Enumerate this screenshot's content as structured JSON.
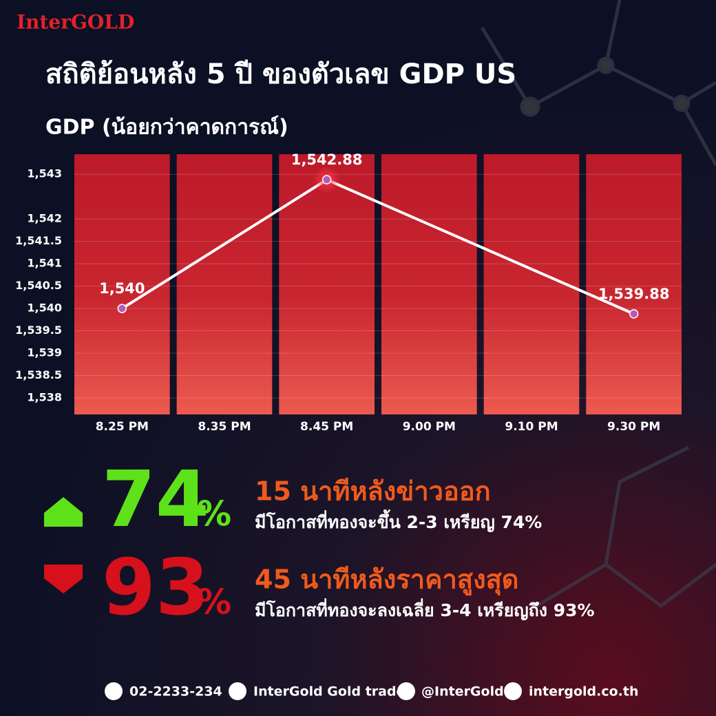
{
  "brand": "InterGOLD",
  "title": "สถิติย้อนหลัง 5 ปี ของตัวเลข GDP US",
  "chart_data": {
    "type": "line",
    "title": "GDP (น้อยกว่าคาดการณ์)",
    "categories": [
      "8.25 PM",
      "8.35 PM",
      "8.45 PM",
      "9.00 PM",
      "9.10 PM",
      "9.30 PM"
    ],
    "series": [
      {
        "x": [
          "8.25 PM",
          "8.45 PM",
          "9.30 PM"
        ],
        "values": [
          1540,
          1542.88,
          1539.88
        ],
        "value_labels": [
          "1,540",
          "1,542.88",
          "1,539.88"
        ],
        "color": "#ffffff"
      }
    ],
    "ylim": [
      1537.63,
      1543.45
    ],
    "yticks": [
      {
        "value": 1538,
        "label": "1,538"
      },
      {
        "value": 1538.5,
        "label": "1,538.5"
      },
      {
        "value": 1539,
        "label": "1,539"
      },
      {
        "value": 1539.5,
        "label": "1,539.5"
      },
      {
        "value": 1540,
        "label": "1,540"
      },
      {
        "value": 1540.5,
        "label": "1,540.5"
      },
      {
        "value": 1541,
        "label": "1,541"
      },
      {
        "value": 1541.5,
        "label": "1,541.5"
      },
      {
        "value": 1542,
        "label": "1,542"
      },
      {
        "value": 1543,
        "label": "1,543"
      }
    ],
    "grid": true
  },
  "stats": [
    {
      "value": "74",
      "unit": "%",
      "headline": "15 นาทีหลังข่าวออก",
      "detail": "มีโอกาสที่ทองจะขึ้น 2-3 เหรียญ 74%"
    },
    {
      "value": "93",
      "unit": "%",
      "headline": "45 นาทีหลังราคาสูงสุด",
      "detail": "มีโอกาสที่ทองจะลงเฉลี่ย 3-4 เหรียญถึง 93%"
    }
  ],
  "footer": [
    "02-2233-234",
    "InterGold Gold trade",
    "@InterGold",
    "intergold.co.th"
  ]
}
